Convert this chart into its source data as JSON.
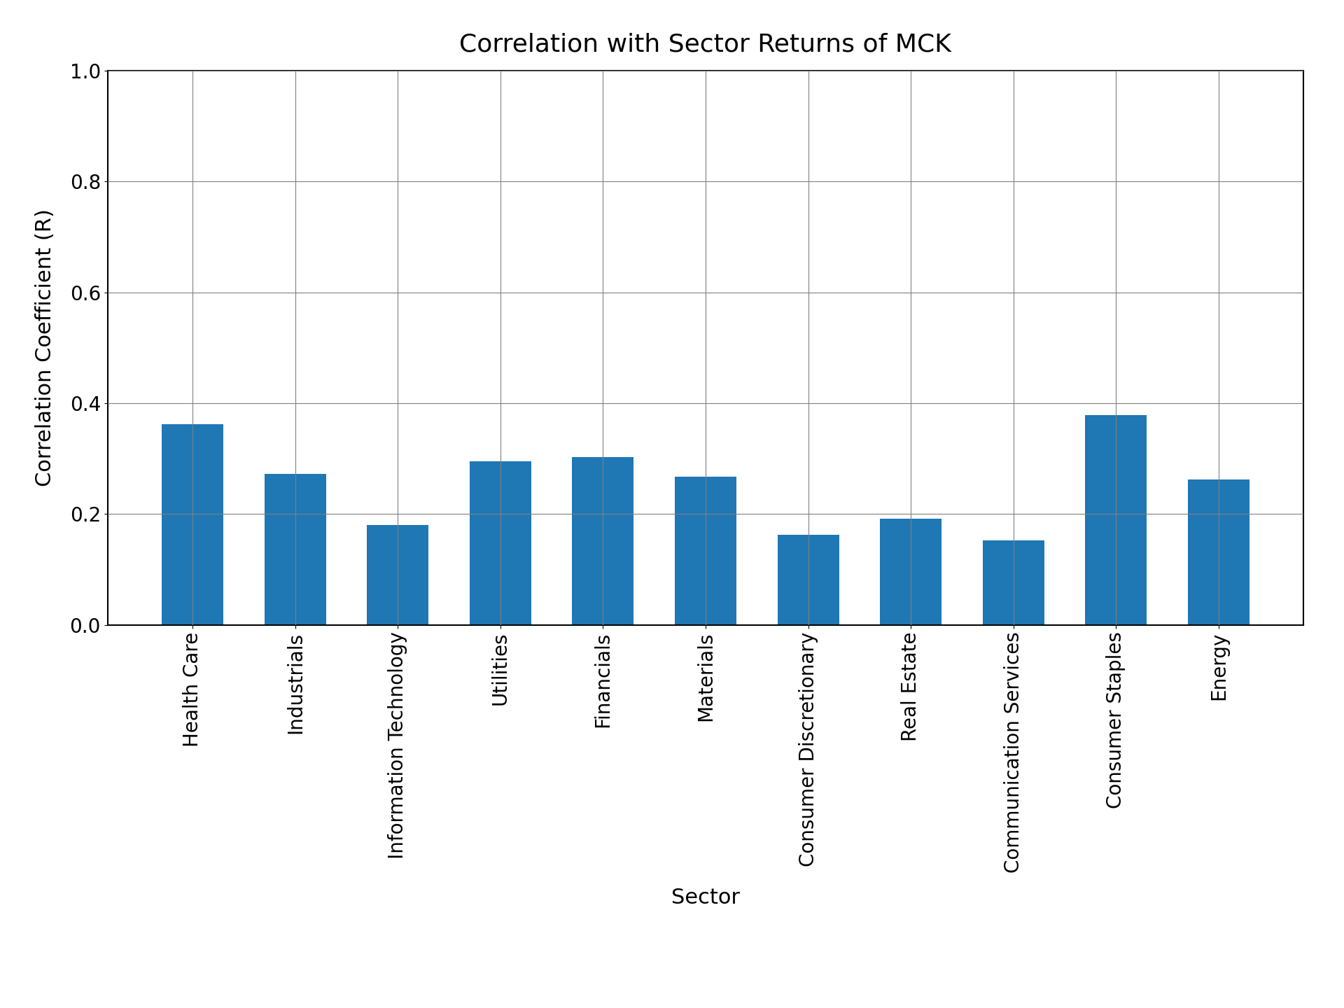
{
  "title": "Correlation with Sector Returns of MCK",
  "xlabel": "Sector",
  "ylabel": "Correlation Coefficient (R)",
  "categories": [
    "Health Care",
    "Industrials",
    "Information Technology",
    "Utilities",
    "Financials",
    "Materials",
    "Consumer Discretionary",
    "Real Estate",
    "Communication Services",
    "Consumer Staples",
    "Energy"
  ],
  "values": [
    0.362,
    0.273,
    0.18,
    0.295,
    0.303,
    0.268,
    0.162,
    0.192,
    0.152,
    0.378,
    0.262
  ],
  "bar_color": "#1f77b4",
  "ylim": [
    0.0,
    1.0
  ],
  "yticks": [
    0.0,
    0.2,
    0.4,
    0.6,
    0.8,
    1.0
  ],
  "grid": true,
  "title_fontsize": 26,
  "label_fontsize": 22,
  "tick_fontsize": 20,
  "xtick_fontsize": 20,
  "bar_width": 0.6,
  "rotation": 90,
  "ha": "center"
}
